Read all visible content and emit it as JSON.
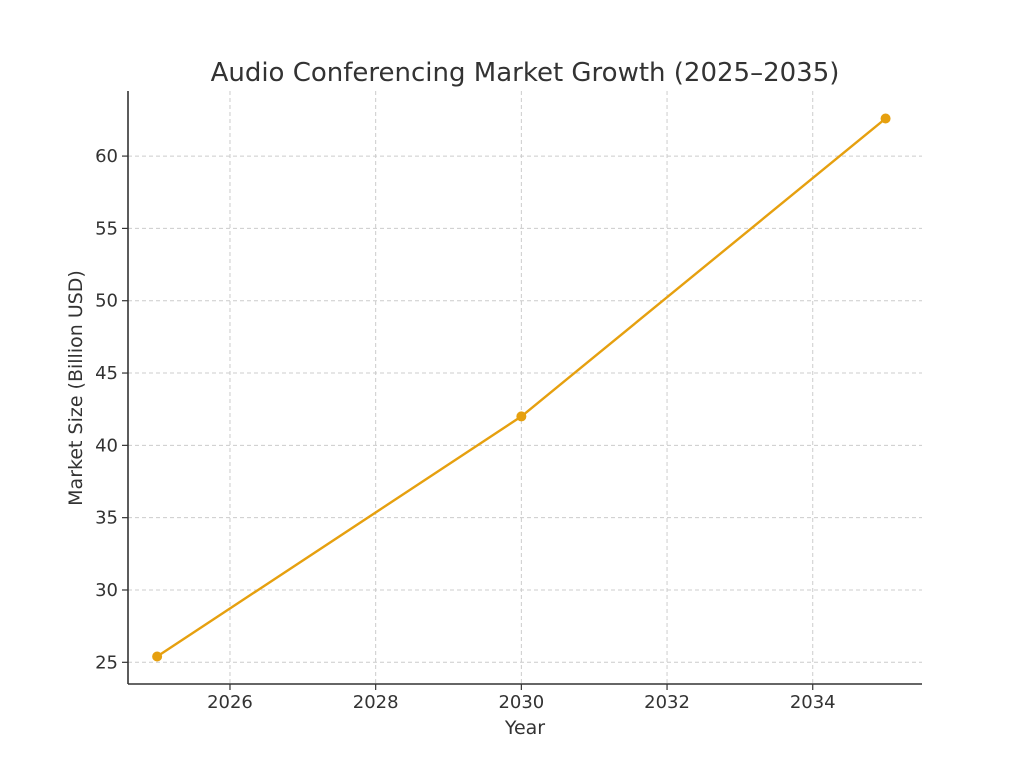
{
  "chart_data": {
    "type": "line",
    "title": "Audio Conferencing Market Growth (2025–2035)",
    "xlabel": "Year",
    "ylabel": "Market Size (Billion USD)",
    "xlim": [
      2024.6,
      2035.5
    ],
    "ylim": [
      23.5,
      64.5
    ],
    "x_ticks": [
      2026,
      2028,
      2030,
      2032,
      2034
    ],
    "y_ticks": [
      25,
      30,
      35,
      40,
      45,
      50,
      55,
      60
    ],
    "grid": true,
    "series": [
      {
        "x": [
          2025,
          2030,
          2035
        ],
        "values": [
          25.4,
          42.0,
          62.6
        ],
        "color": "#e6a00f",
        "marker": "circle"
      }
    ]
  }
}
